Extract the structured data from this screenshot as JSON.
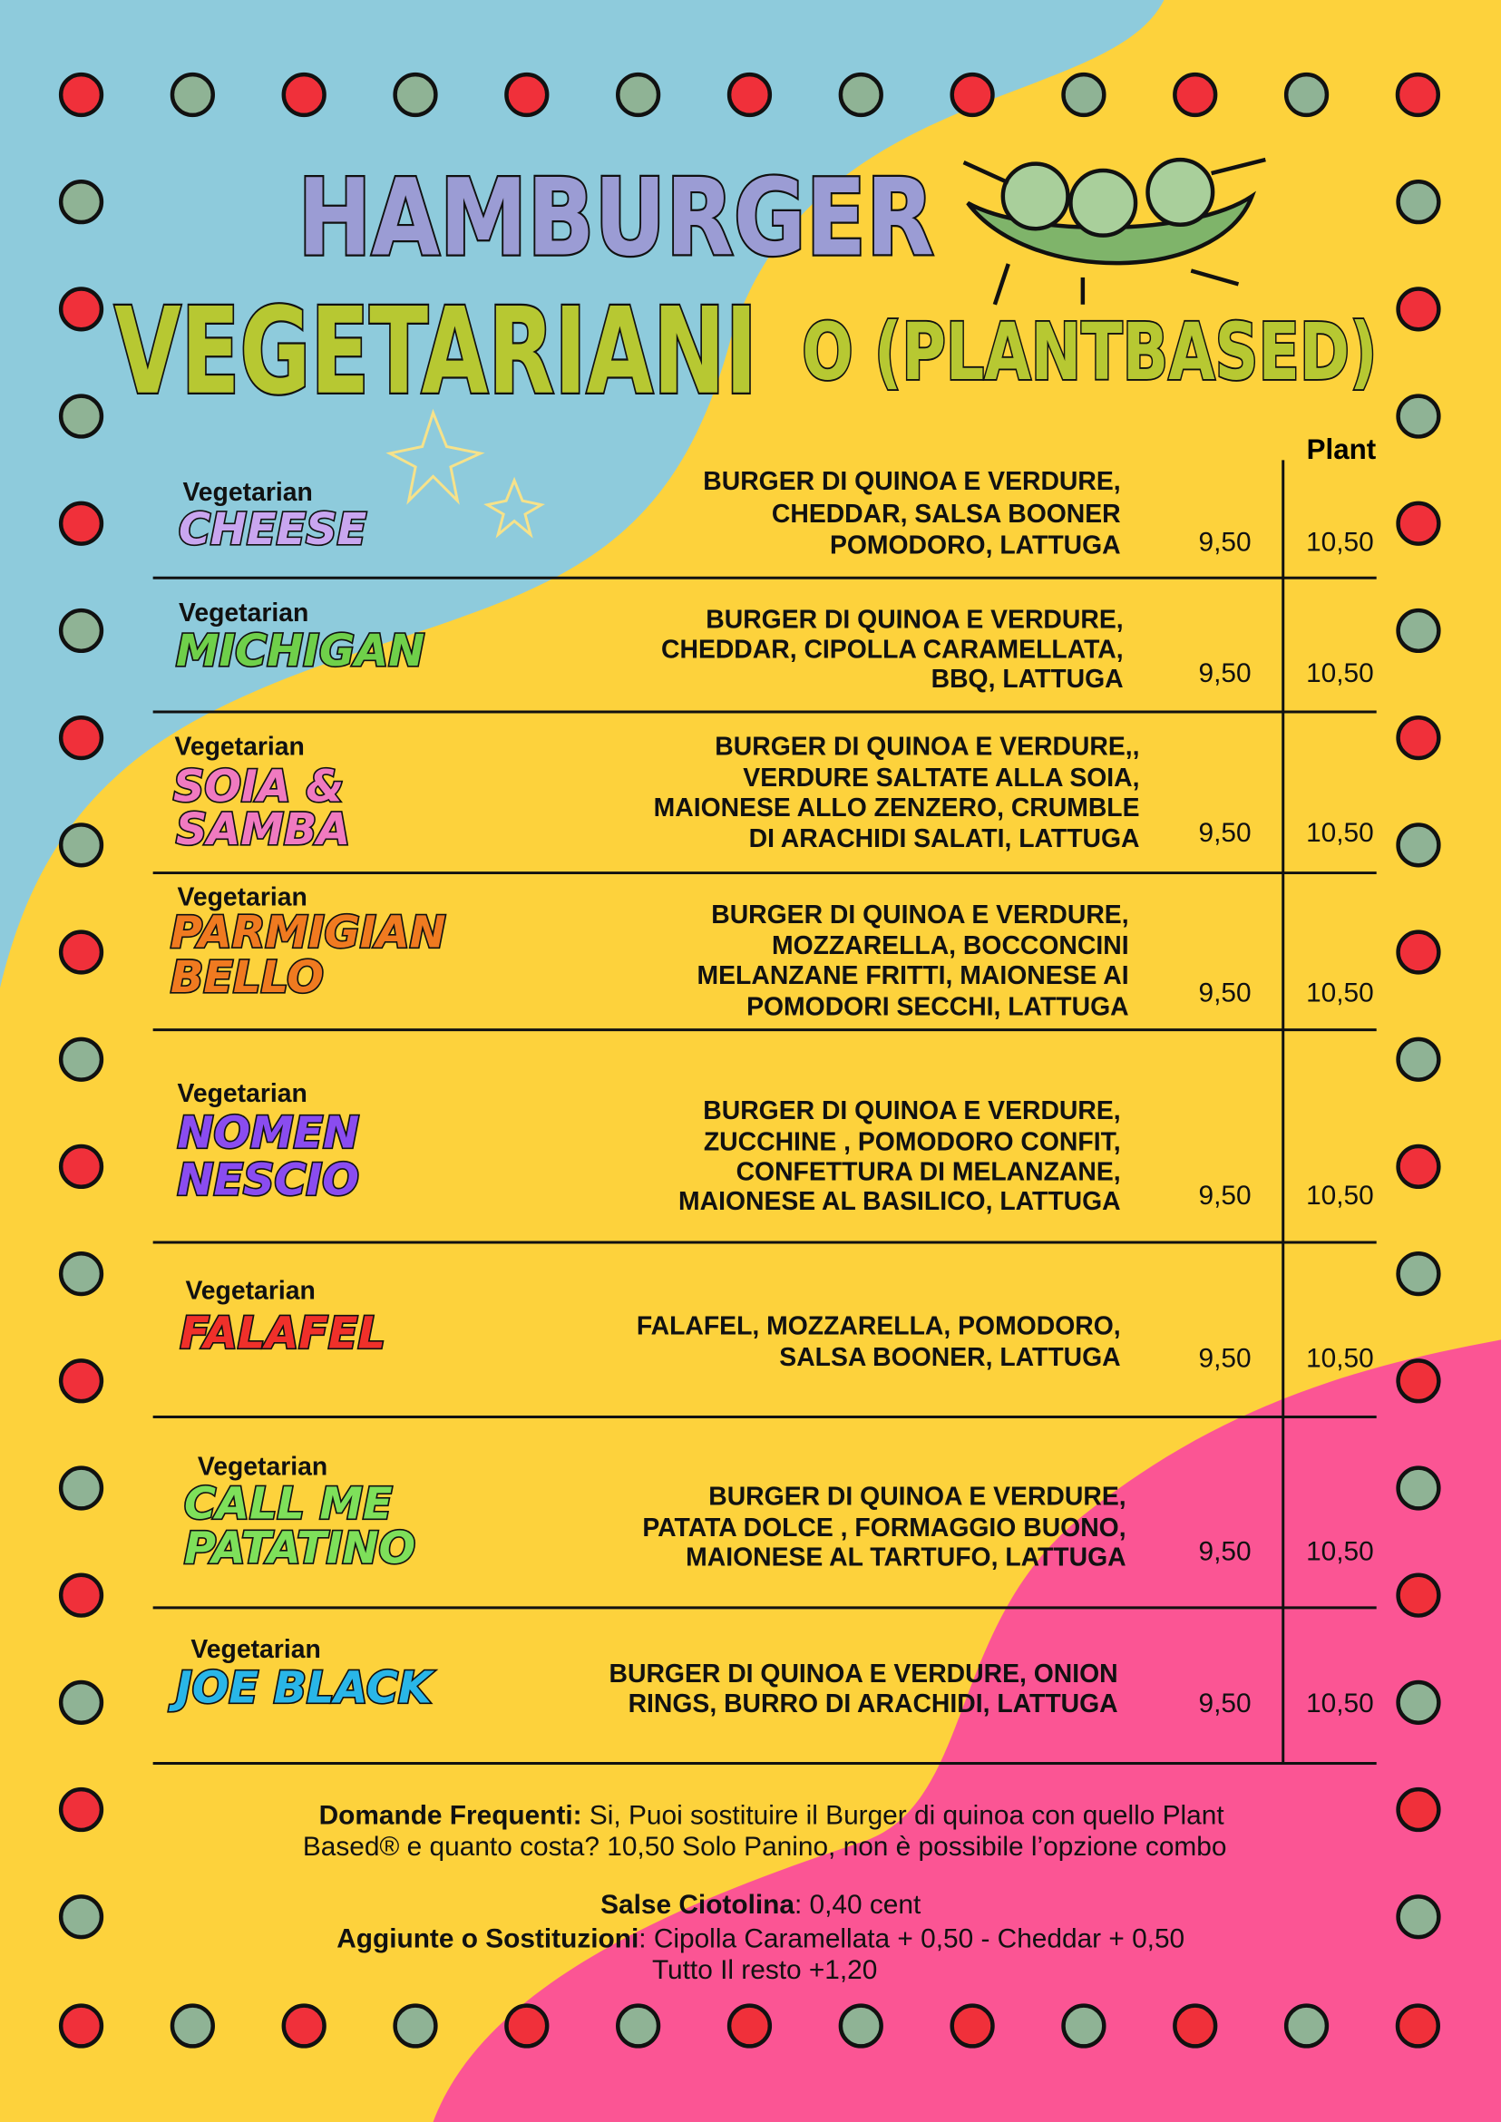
{
  "header": {
    "title_line1": "HAMBURGER",
    "title_line2": "VEGETARIANI",
    "title_line2_suffix": "O (PLANTBASED)",
    "plant_column": "Plant"
  },
  "items": [
    {
      "tag": "Vegetarian",
      "name": [
        "CHEESE"
      ],
      "description": [
        "BURGER DI QUINOA E VERDURE,",
        "CHEDDAR, SALSA BOONER",
        "POMODORO, LATTUGA"
      ],
      "price": "9,50",
      "plant_price": "10,50"
    },
    {
      "tag": "Vegetarian",
      "name": [
        "MICHIGAN"
      ],
      "description": [
        "BURGER DI QUINOA E VERDURE,",
        "CHEDDAR, CIPOLLA CARAMELLATA,",
        "BBQ, LATTUGA"
      ],
      "price": "9,50",
      "plant_price": "10,50"
    },
    {
      "tag": "Vegetarian",
      "name": [
        "SOIA &",
        "SAMBA"
      ],
      "description": [
        "BURGER DI QUINOA E VERDURE,,",
        "VERDURE SALTATE  ALLA SOIA,",
        "MAIONESE ALLO ZENZERO, CRUMBLE",
        "DI ARACHIDI SALATI, LATTUGA"
      ],
      "price": "9,50",
      "plant_price": "10,50"
    },
    {
      "tag": "Vegetarian",
      "name": [
        "PARMIGIAN",
        "BELLO"
      ],
      "description": [
        "BURGER DI QUINOA E VERDURE,",
        "MOZZARELLA, BOCCONCINI",
        "MELANZANE FRITTI, MAIONESE AI",
        "POMODORI SECCHI, LATTUGA"
      ],
      "price": "9,50",
      "plant_price": "10,50"
    },
    {
      "tag": "Vegetarian",
      "name": [
        "NOMEN",
        "NESCIO"
      ],
      "description": [
        "BURGER DI QUINOA E VERDURE,",
        "ZUCCHINE , POMODORO CONFIT,",
        "CONFETTURA DI MELANZANE,",
        "MAIONESE AL BASILICO, LATTUGA"
      ],
      "price": "9,50",
      "plant_price": "10,50"
    },
    {
      "tag": "Vegetarian",
      "name": [
        "FALAFEL"
      ],
      "description": [
        "FALAFEL, MOZZARELLA, POMODORO,",
        "SALSA BOONER, LATTUGA"
      ],
      "price": "9,50",
      "plant_price": "10,50"
    },
    {
      "tag": "Vegetarian",
      "name": [
        "CALL ME",
        "PATATINO"
      ],
      "description": [
        "BURGER DI QUINOA E VERDURE,",
        "PATATA DOLCE , FORMAGGIO BUONO,",
        "MAIONESE AL TARTUFO, LATTUGA"
      ],
      "price": "9,50",
      "plant_price": "10,50"
    },
    {
      "tag": "Vegetarian",
      "name": [
        "JOE BLACK"
      ],
      "description": [
        "BURGER DI QUINOA E VERDURE, ONION",
        "RINGS, BURRO DI ARACHIDI, LATTUGA"
      ],
      "price": "9,50",
      "plant_price": "10,50"
    }
  ],
  "footer": {
    "faq_label": "Domande Frequenti:",
    "faq_text": [
      " Si, Puoi sostituire il Burger di quinoa con quello Plant",
      "Based® e quanto costa? 10,50 Solo Panino, non è possibile l’opzione combo"
    ],
    "sauce_label": "Salse Ciotolina",
    "sauce_text": ": 0,40 cent",
    "extras_label": "Aggiunte o Sostituzioni",
    "extras_text": ": Cipolla Caramellata + 0,50 -  Cheddar + 0,50",
    "extras_rest": "Tutto Il resto +1,20"
  }
}
